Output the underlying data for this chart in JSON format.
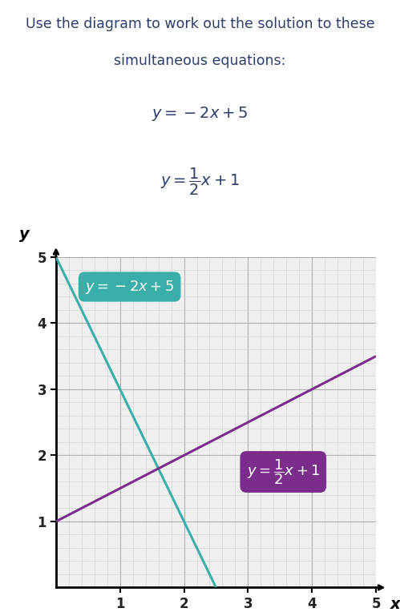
{
  "title_line1": "Use the diagram to work out the solution to these",
  "title_line2": "simultaneous equations:",
  "line1_color": "#3aafa9",
  "line2_color": "#7b2d8b",
  "line1_box_color": "#3aafa9",
  "line2_box_color": "#7b2d8b",
  "xlim": [
    0,
    5
  ],
  "ylim": [
    0,
    5
  ],
  "xticks": [
    1,
    2,
    3,
    4,
    5
  ],
  "yticks": [
    1,
    2,
    3,
    4,
    5
  ],
  "background_color": "#ffffff",
  "plot_bg_color": "#efefef",
  "line1_x": [
    0,
    2.5
  ],
  "line1_y": [
    5,
    0
  ],
  "line2_x": [
    0,
    5
  ],
  "line2_y": [
    1,
    3.5
  ],
  "xlabel": "x",
  "ylabel": "y",
  "title_color": "#2c3e6b",
  "tick_color": "#222222"
}
